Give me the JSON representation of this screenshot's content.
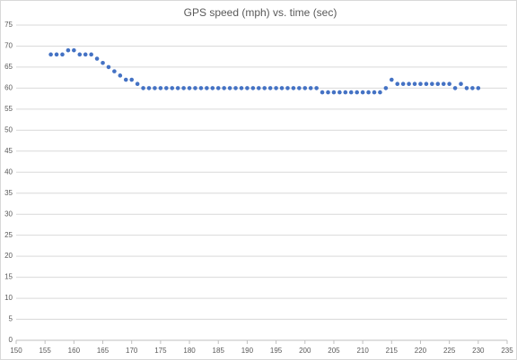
{
  "chart_data": {
    "type": "scatter",
    "title": "GPS speed (mph) vs. time (sec)",
    "x": [
      156,
      157,
      158,
      159,
      160,
      161,
      162,
      163,
      164,
      165,
      166,
      167,
      168,
      169,
      170,
      171,
      172,
      173,
      174,
      175,
      176,
      177,
      178,
      179,
      180,
      181,
      182,
      183,
      184,
      185,
      186,
      187,
      188,
      189,
      190,
      191,
      192,
      193,
      194,
      195,
      196,
      197,
      198,
      199,
      200,
      201,
      202,
      203,
      204,
      205,
      206,
      207,
      208,
      209,
      210,
      211,
      212,
      213,
      214,
      215,
      216,
      217,
      218,
      219,
      220,
      221,
      222,
      223,
      224,
      225,
      226,
      227,
      228,
      229,
      230
    ],
    "series": [
      {
        "color": "#4472c4",
        "values": [
          68,
          68,
          68,
          69,
          69,
          68,
          68,
          68,
          67,
          66,
          65,
          64,
          63,
          62,
          62,
          61,
          60,
          60,
          60,
          60,
          60,
          60,
          60,
          60,
          60,
          60,
          60,
          60,
          60,
          60,
          60,
          60,
          60,
          60,
          60,
          60,
          60,
          60,
          60,
          60,
          60,
          60,
          60,
          60,
          60,
          60,
          60,
          59,
          59,
          59,
          59,
          59,
          59,
          59,
          59,
          59,
          59,
          59,
          60,
          62,
          61,
          61,
          61,
          61,
          61,
          61,
          61,
          61,
          61,
          61,
          60,
          61,
          60,
          60,
          60
        ]
      }
    ],
    "xlim": [
      150,
      235
    ],
    "xticks": [
      150,
      155,
      160,
      165,
      170,
      175,
      180,
      185,
      190,
      195,
      200,
      205,
      210,
      215,
      220,
      225,
      230,
      235
    ],
    "ylim": [
      0,
      75
    ],
    "yticks": [
      0,
      5,
      10,
      15,
      20,
      25,
      30,
      35,
      40,
      45,
      50,
      55,
      60,
      65,
      70,
      75
    ],
    "grid": true
  }
}
